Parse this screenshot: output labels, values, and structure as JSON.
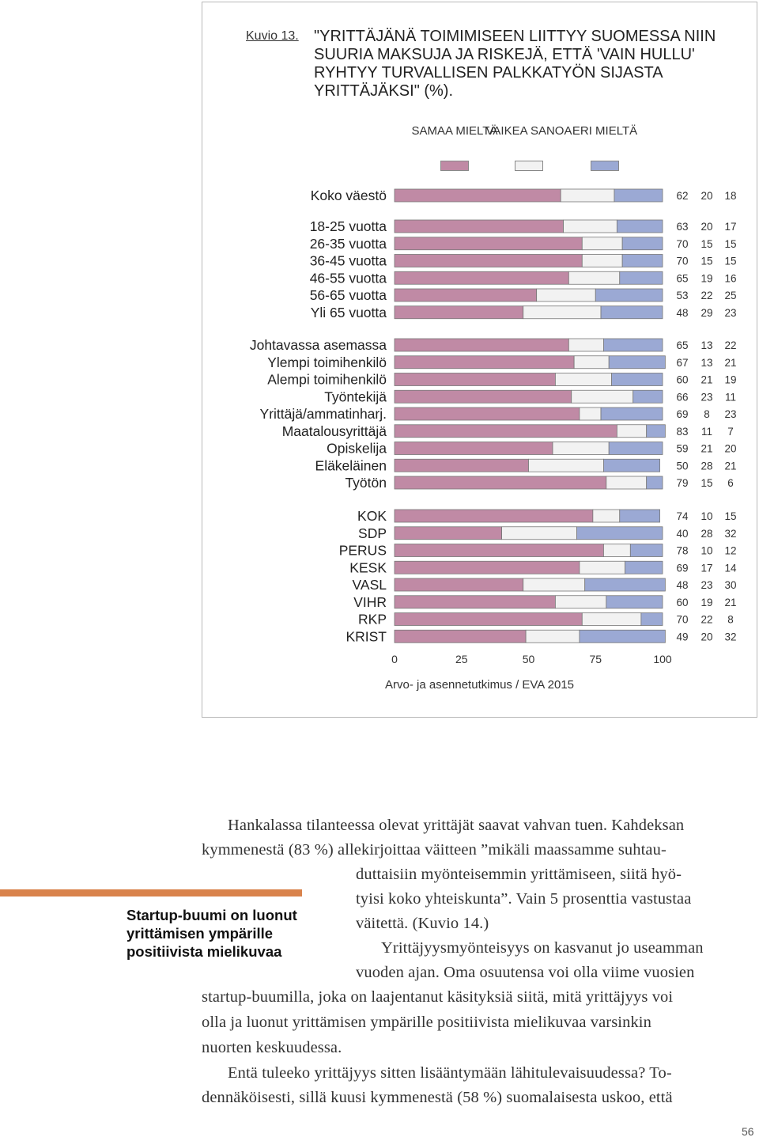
{
  "figure": {
    "number": "Kuvio 13.",
    "title": "\"YRITTÄJÄNÄ TOIMIMISEEN LIITTYY SUOMESSA NIIN SUURIA MAKSUJA JA RISKEJÄ, ETTÄ 'VAIN HULLU' RYHTYY TURVALLISEN PALKKATYÖN SIJASTA YRITTÄJÄKSI\" (%).",
    "source": "Arvo- ja asennetutkimus / EVA 2015"
  },
  "colors": {
    "agree": "#c08aa5",
    "undecided": "#f2f2f2",
    "disagree": "#9ba9d4"
  },
  "chart_data": {
    "type": "bar",
    "stacked": true,
    "orientation": "horizontal",
    "legend_placement": "top",
    "xlim": [
      0,
      100
    ],
    "xticks": [
      "0",
      "25",
      "50",
      "75",
      "100"
    ],
    "series": [
      {
        "name": "SAMAA MIELTÄ",
        "color": "#c08aa5"
      },
      {
        "name": "VAIKEA SANOA",
        "color": "#f2f2f2"
      },
      {
        "name": "ERI MIELTÄ",
        "color": "#9ba9d4"
      }
    ],
    "groups": [
      {
        "rows": [
          {
            "label": "Koko väestö",
            "values": [
              62,
              20,
              18
            ]
          }
        ]
      },
      {
        "rows": [
          {
            "label": "18-25 vuotta",
            "values": [
              63,
              20,
              17
            ]
          },
          {
            "label": "26-35 vuotta",
            "values": [
              70,
              15,
              15
            ]
          },
          {
            "label": "36-45 vuotta",
            "values": [
              70,
              15,
              15
            ]
          },
          {
            "label": "46-55 vuotta",
            "values": [
              65,
              19,
              16
            ]
          },
          {
            "label": "56-65 vuotta",
            "values": [
              53,
              22,
              25
            ]
          },
          {
            "label": "Yli 65 vuotta",
            "values": [
              48,
              29,
              23
            ]
          }
        ]
      },
      {
        "rows": [
          {
            "label": "Johtavassa asemassa",
            "values": [
              65,
              13,
              22
            ]
          },
          {
            "label": "Ylempi toimihenkilö",
            "values": [
              67,
              13,
              21
            ]
          },
          {
            "label": "Alempi toimihenkilö",
            "values": [
              60,
              21,
              19
            ]
          },
          {
            "label": "Työntekijä",
            "values": [
              66,
              23,
              11
            ]
          },
          {
            "label": "Yrittäjä/ammatinharj.",
            "values": [
              69,
              8,
              23
            ]
          },
          {
            "label": "Maatalousyrittäjä",
            "values": [
              83,
              11,
              7
            ]
          },
          {
            "label": "Opiskelija",
            "values": [
              59,
              21,
              20
            ]
          },
          {
            "label": "Eläkeläinen",
            "values": [
              50,
              28,
              21
            ]
          },
          {
            "label": "Työtön",
            "values": [
              79,
              15,
              6
            ]
          }
        ]
      },
      {
        "rows": [
          {
            "label": "KOK",
            "values": [
              74,
              10,
              15
            ]
          },
          {
            "label": "SDP",
            "values": [
              40,
              28,
              32
            ]
          },
          {
            "label": "PERUS",
            "values": [
              78,
              10,
              12
            ]
          },
          {
            "label": "KESK",
            "values": [
              69,
              17,
              14
            ]
          },
          {
            "label": "VASL",
            "values": [
              48,
              23,
              30
            ]
          },
          {
            "label": "VIHR",
            "values": [
              60,
              19,
              21
            ]
          },
          {
            "label": "RKP",
            "values": [
              70,
              22,
              8
            ]
          },
          {
            "label": "KRIST",
            "values": [
              49,
              20,
              32
            ]
          }
        ]
      }
    ]
  },
  "body_text": {
    "lines": [
      "Hankalassa tilanteessa olevat yrittäjät saavat vahvan tuen. Kahdeksan",
      "kymmenestä (83 %) allekirjoittaa väitteen ”mikäli maassamme suhtau-",
      "duttaisiin myönteisemmin yrittämiseen, siitä hyö-",
      "tyisi koko yhteiskunta”. Vain 5 prosenttia vastustaa",
      "väitettä. (Kuvio 14.)",
      "Yrittäjyysmyönteisyys on kasvanut jo useamman",
      "vuoden ajan. Oma osuutensa voi olla viime vuosien",
      "startup-buumilla, joka on laajentanut käsityksiä siitä, mitä yrittäjyys voi",
      "olla ja luonut yrittämisen ympärille positiivista mielikuvaa varsinkin",
      "nuorten keskuudessa.",
      "Entä tuleeko yrittäjyys sitten lisääntymään lähitulevaisuudessa? To-",
      "dennäköisesti, sillä kuusi kymmenestä (58 %) suomalaisesta uskoo, että"
    ]
  },
  "sidebar": {
    "heading": "Startup-buumi on luonut yrittämisen ympärille positiivista mielikuvaa"
  },
  "page_number": "56"
}
